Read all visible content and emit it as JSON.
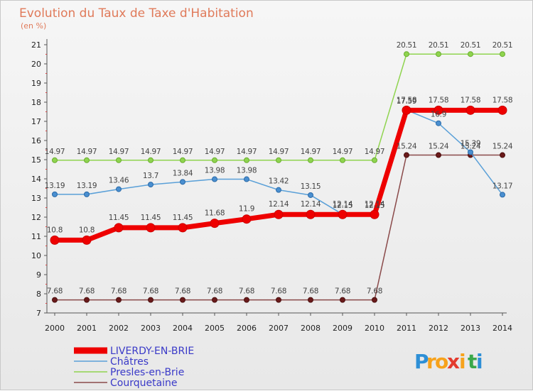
{
  "title": "Evolution du Taux de Taxe d'Habitation",
  "subtitle": "(en %)",
  "logo": {
    "letters": [
      "P",
      "r",
      "o",
      "x",
      "i",
      "t",
      "i"
    ],
    "colors": [
      "#2d8fd6",
      "#f7a21b",
      "#f7a21b",
      "#e33b2e",
      "#f7a21b",
      "#3aa84a",
      "#2d8fd6"
    ]
  },
  "chart_data": {
    "type": "line",
    "x": [
      "2000",
      "2001",
      "2002",
      "2003",
      "2004",
      "2005",
      "2006",
      "2007",
      "2008",
      "2009",
      "2010",
      "2011",
      "2012",
      "2013",
      "2014"
    ],
    "ylim": [
      7,
      21
    ],
    "yticks": [
      "7",
      "8",
      "9",
      "10",
      "11",
      "12",
      "13",
      "14",
      "15",
      "16",
      "17",
      "18",
      "19",
      "20",
      "21"
    ],
    "grid": false,
    "legend_position": "bottom-left",
    "series": [
      {
        "name": "Presles-en-Brie",
        "color": "#8fd44f",
        "width": 1.5,
        "marker_fill": "#8fd44f",
        "marker_stroke": "#6aae2e",
        "marker_r": 3.5,
        "values": [
          14.97,
          14.97,
          14.97,
          14.97,
          14.97,
          14.97,
          14.97,
          14.97,
          14.97,
          14.97,
          14.97,
          20.51,
          20.51,
          20.51,
          20.51
        ],
        "labels": [
          "14.97",
          "14.97",
          "14.97",
          "14.97",
          "14.97",
          "14.97",
          "14.97",
          "14.97",
          "14.97",
          "14.97",
          "14.97",
          "20.51",
          "20.51",
          "20.51",
          "20.51"
        ]
      },
      {
        "name": "Courquetaine",
        "color": "#8a4a4a",
        "width": 1.5,
        "marker_fill": "#6a1a1a",
        "marker_stroke": "#4a0e0e",
        "marker_r": 3.5,
        "values": [
          7.68,
          7.68,
          7.68,
          7.68,
          7.68,
          7.68,
          7.68,
          7.68,
          7.68,
          7.68,
          7.68,
          15.24,
          15.24,
          15.24,
          15.24
        ],
        "labels": [
          "7.68",
          "7.68",
          "7.68",
          "7.68",
          "7.68",
          "7.68",
          "7.68",
          "7.68",
          "7.68",
          "7.68",
          "7.68",
          "15.24",
          "15.24",
          "15.24",
          "15.24"
        ]
      },
      {
        "name": "Châtres",
        "color": "#5aa0d8",
        "width": 1.5,
        "marker_fill": "#4a8fd0",
        "marker_stroke": "#2a6aa8",
        "marker_r": 3.5,
        "values": [
          13.19,
          13.19,
          13.46,
          13.7,
          13.84,
          13.98,
          13.98,
          13.42,
          13.15,
          12.15,
          12.15,
          17.59,
          16.9,
          15.39,
          13.17
        ],
        "labels": [
          "13.19",
          "13.19",
          "13.46",
          "13.7",
          "13.84",
          "13.98",
          "13.98",
          "13.42",
          "13.15",
          "12.15",
          "12.15",
          "17.59",
          "16.9",
          "15.39",
          "13.17"
        ]
      },
      {
        "name": "LIVERDY-EN-BRIE",
        "color": "#ee0000",
        "width": 7,
        "marker_fill": "#ee0000",
        "marker_stroke": "#cc0000",
        "marker_r": 6,
        "values": [
          10.8,
          10.8,
          11.45,
          11.45,
          11.45,
          11.68,
          11.9,
          12.14,
          12.14,
          12.14,
          12.14,
          17.58,
          17.58,
          17.58,
          17.58
        ],
        "labels": [
          "10.8",
          "10.8",
          "11.45",
          "11.45",
          "11.45",
          "11.68",
          "11.9",
          "12.14",
          "12.14",
          "12.14",
          "12.14",
          "17.58",
          "17.58",
          "17.58",
          "17.58"
        ]
      }
    ]
  }
}
